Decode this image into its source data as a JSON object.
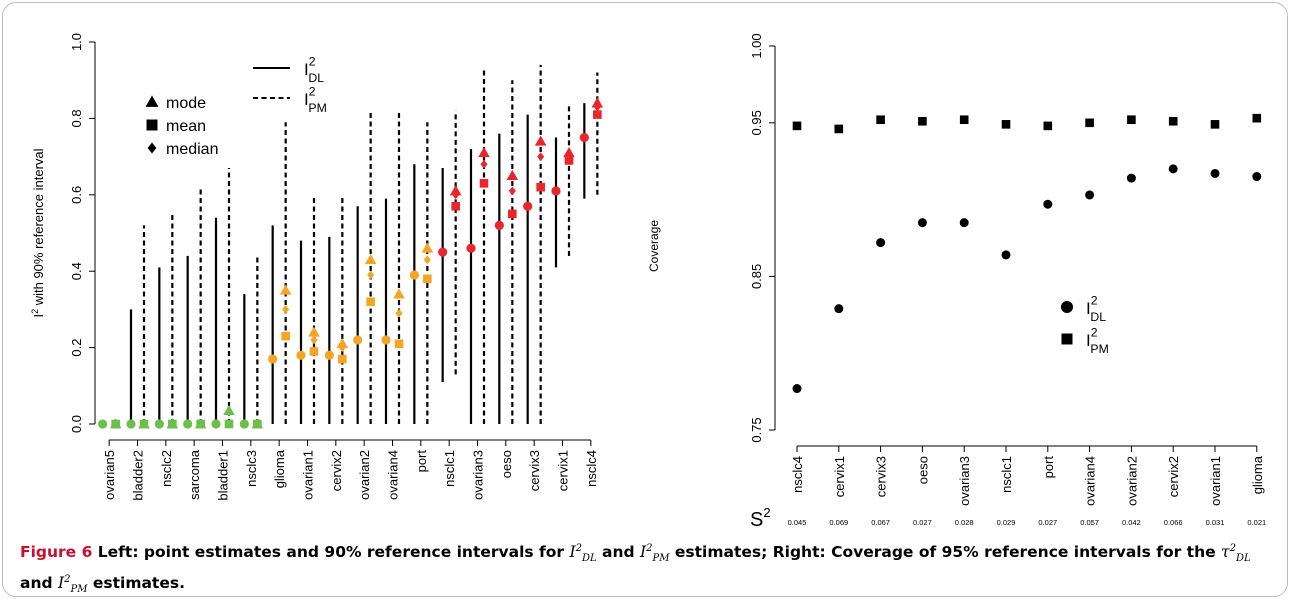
{
  "chart_data": [
    {
      "type": "interval",
      "ylabel_main": "I",
      "ylabel_sup": "2",
      "ylabel_rest": " with 90% reference interval",
      "ylim": [
        0,
        1.0
      ],
      "yticks": [
        "0.0",
        "0.2",
        "0.4",
        "0.6",
        "0.8",
        "1.0"
      ],
      "ytick_values": [
        0,
        0.2,
        0.4,
        0.6,
        0.8,
        1.0
      ],
      "colors": {
        "zero": "#6dbf4b",
        "low": "#f5a524",
        "high": "#e8262b"
      },
      "legend_lines": [
        {
          "name": "I",
          "sup": "2",
          "sub": "DL",
          "style": "solid"
        },
        {
          "name": "I",
          "sup": "2",
          "sub": "PM",
          "style": "dashed"
        }
      ],
      "legend_markers": [
        {
          "name": "mode",
          "shape": "triangle"
        },
        {
          "name": "mean",
          "shape": "square"
        },
        {
          "name": "median",
          "shape": "diamond"
        }
      ],
      "studies": [
        {
          "name": "ovarian5",
          "color": "zero",
          "dl": {
            "point": 0,
            "lo": 0,
            "hi": 0
          },
          "pm": {
            "mode": 0,
            "mean": 0,
            "median": 0,
            "lo": 0,
            "hi": 0
          }
        },
        {
          "name": "bladder2",
          "color": "zero",
          "dl": {
            "point": 0,
            "lo": 0,
            "hi": 0.3
          },
          "pm": {
            "mode": 0,
            "mean": 0,
            "median": 0,
            "lo": 0,
            "hi": 0.52
          }
        },
        {
          "name": "nsclc2",
          "color": "zero",
          "dl": {
            "point": 0,
            "lo": 0,
            "hi": 0.41
          },
          "pm": {
            "mode": 0,
            "mean": 0,
            "median": 0,
            "lo": 0,
            "hi": 0.55
          }
        },
        {
          "name": "sarcoma",
          "color": "zero",
          "dl": {
            "point": 0,
            "lo": 0,
            "hi": 0.44
          },
          "pm": {
            "mode": 0,
            "mean": 0,
            "median": 0,
            "lo": 0,
            "hi": 0.62
          }
        },
        {
          "name": "bladder1",
          "color": "zero",
          "dl": {
            "point": 0,
            "lo": 0,
            "hi": 0.54
          },
          "pm": {
            "mode": 0.035,
            "mean": 0,
            "median": 0,
            "lo": 0,
            "hi": 0.67
          }
        },
        {
          "name": "nsclc3",
          "color": "zero",
          "dl": {
            "point": 0,
            "lo": 0,
            "hi": 0.34
          },
          "pm": {
            "mode": 0,
            "mean": 0,
            "median": 0,
            "lo": 0,
            "hi": 0.44
          }
        },
        {
          "name": "glioma",
          "color": "low",
          "dl": {
            "point": 0.17,
            "lo": 0,
            "hi": 0.52
          },
          "pm": {
            "mode": 0.35,
            "mean": 0.23,
            "median": 0.3,
            "lo": 0,
            "hi": 0.79
          }
        },
        {
          "name": "ovarian1",
          "color": "low",
          "dl": {
            "point": 0.18,
            "lo": 0,
            "hi": 0.48
          },
          "pm": {
            "mode": 0.24,
            "mean": 0.19,
            "median": 0.22,
            "lo": 0,
            "hi": 0.6
          }
        },
        {
          "name": "cervix2",
          "color": "low",
          "dl": {
            "point": 0.18,
            "lo": 0,
            "hi": 0.49
          },
          "pm": {
            "mode": 0.21,
            "mean": 0.17,
            "median": 0.2,
            "lo": 0,
            "hi": 0.6
          }
        },
        {
          "name": "ovarian2",
          "color": "low",
          "dl": {
            "point": 0.22,
            "lo": 0,
            "hi": 0.57
          },
          "pm": {
            "mode": 0.43,
            "mean": 0.32,
            "median": 0.39,
            "lo": 0,
            "hi": 0.82
          }
        },
        {
          "name": "ovarian4",
          "color": "low",
          "dl": {
            "point": 0.22,
            "lo": 0,
            "hi": 0.59
          },
          "pm": {
            "mode": 0.34,
            "mean": 0.21,
            "median": 0.29,
            "lo": 0,
            "hi": 0.82
          }
        },
        {
          "name": "port",
          "color": "low",
          "dl": {
            "point": 0.39,
            "lo": 0,
            "hi": 0.68
          },
          "pm": {
            "mode": 0.46,
            "mean": 0.38,
            "median": 0.43,
            "lo": 0,
            "hi": 0.79
          }
        },
        {
          "name": "nsclc1",
          "color": "high",
          "dl": {
            "point": 0.45,
            "lo": 0.11,
            "hi": 0.67
          },
          "pm": {
            "mode": 0.61,
            "mean": 0.57,
            "median": 0.6,
            "lo": 0.13,
            "hi": 0.82
          }
        },
        {
          "name": "ovarian3",
          "color": "high",
          "dl": {
            "point": 0.46,
            "lo": 0,
            "hi": 0.72
          },
          "pm": {
            "mode": 0.71,
            "mean": 0.63,
            "median": 0.68,
            "lo": 0,
            "hi": 0.93
          }
        },
        {
          "name": "oeso",
          "color": "high",
          "dl": {
            "point": 0.52,
            "lo": 0,
            "hi": 0.76
          },
          "pm": {
            "mode": 0.65,
            "mean": 0.55,
            "median": 0.61,
            "lo": 0,
            "hi": 0.9
          }
        },
        {
          "name": "cervix3",
          "color": "high",
          "dl": {
            "point": 0.57,
            "lo": 0,
            "hi": 0.81
          },
          "pm": {
            "mode": 0.74,
            "mean": 0.62,
            "median": 0.7,
            "lo": 0,
            "hi": 0.94
          }
        },
        {
          "name": "cervix1",
          "color": "high",
          "dl": {
            "point": 0.61,
            "lo": 0.41,
            "hi": 0.75
          },
          "pm": {
            "mode": 0.71,
            "mean": 0.69,
            "median": 0.7,
            "lo": 0.44,
            "hi": 0.84
          }
        },
        {
          "name": "nsclc4",
          "color": "high",
          "dl": {
            "point": 0.75,
            "lo": 0.59,
            "hi": 0.84
          },
          "pm": {
            "mode": 0.84,
            "mean": 0.81,
            "median": 0.83,
            "lo": 0.6,
            "hi": 0.92
          }
        }
      ]
    },
    {
      "type": "scatter",
      "ylabel": "Coverage",
      "ylim": [
        0.75,
        1.0
      ],
      "yticks": [
        "0.75",
        "0.85",
        "0.95",
        "1.00"
      ],
      "ytick_values": [
        0.75,
        0.85,
        0.95,
        1.0
      ],
      "categories": [
        "nsclc4",
        "cervix1",
        "cervix3",
        "oeso",
        "ovarian3",
        "nsclc1",
        "port",
        "ovarian4",
        "ovarian2",
        "cervix2",
        "ovarian1",
        "glioma"
      ],
      "s2_label": "S",
      "s2_sup": "2",
      "s2_values": [
        "0.045",
        "0.069",
        "0.067",
        "0.027",
        "0.028",
        "0.029",
        "0.027",
        "0.057",
        "0.042",
        "0.066",
        "0.031",
        "0.021"
      ],
      "series": [
        {
          "name": "I",
          "sup": "2",
          "sub": "DL",
          "marker": "circle",
          "values": [
            0.777,
            0.829,
            0.872,
            0.885,
            0.885,
            0.864,
            0.897,
            0.903,
            0.914,
            0.92,
            0.917,
            0.915
          ]
        },
        {
          "name": "I",
          "sup": "2",
          "sub": "PM",
          "marker": "square",
          "values": [
            0.948,
            0.946,
            0.952,
            0.951,
            0.952,
            0.949,
            0.948,
            0.95,
            0.952,
            0.951,
            0.949,
            0.953
          ]
        }
      ]
    }
  ],
  "caption": {
    "label": "Figure 6",
    "t1": " Left: point estimates and 90% reference intervals for ",
    "t2": " and ",
    "t3": " estimates; Right: Coverage of 95% reference intervals for the ",
    "t4": " and ",
    "t5": " estimates.",
    "sym1": "I",
    "sym1_sup": "2",
    "sym1_sub": "DL",
    "sym2": "I",
    "sym2_sup": "2",
    "sym2_sub": "PM",
    "sym3": "τ",
    "sym3_sup": "2",
    "sym3_sub": "DL",
    "sym4": "I",
    "sym4_sup": "2",
    "sym4_sub": "PM"
  }
}
